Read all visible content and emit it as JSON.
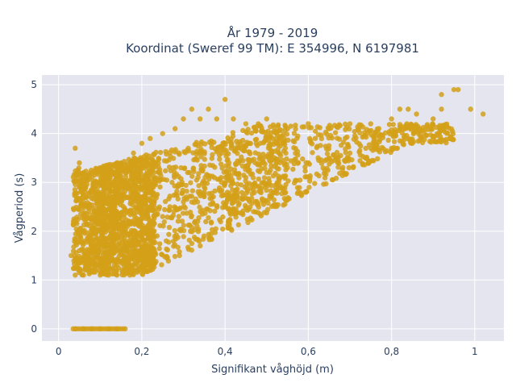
{
  "chart_data": {
    "type": "scatter",
    "title_line1": "År 1979 - 2019",
    "title_line2": "Koordinat (Sweref 99 TM): E 354996, N 6197981",
    "xlabel": "Signifikant våghöjd (m)",
    "ylabel": "Vågperiod (s)",
    "xlim": [
      -0.04,
      1.07
    ],
    "ylim": [
      -0.25,
      5.2
    ],
    "x_ticks": [
      0,
      0.2,
      0.4,
      0.6,
      0.8,
      1
    ],
    "x_tick_labels": [
      "0",
      "0,2",
      "0,4",
      "0,6",
      "0,8",
      "1"
    ],
    "y_ticks": [
      0,
      1,
      2,
      3,
      4,
      5
    ],
    "y_tick_labels": [
      "0",
      "1",
      "2",
      "3",
      "4",
      "5"
    ],
    "grid": true,
    "background_color": "#e5e5ef",
    "marker_color": "#d4a017",
    "series": [
      {
        "points": [
          [
            0.04,
            0.0
          ],
          [
            0.06,
            0.0
          ],
          [
            0.08,
            0.0
          ],
          [
            0.1,
            0.0
          ],
          [
            0.12,
            0.0
          ],
          [
            0.14,
            0.0
          ],
          [
            0.16,
            0.0
          ],
          [
            0.03,
            1.5
          ],
          [
            0.04,
            1.1
          ],
          [
            0.05,
            1.6
          ],
          [
            0.05,
            2.9
          ],
          [
            0.05,
            3.4
          ],
          [
            0.04,
            3.7
          ],
          [
            0.06,
            1.1
          ],
          [
            0.06,
            3.2
          ],
          [
            0.07,
            1.2
          ],
          [
            0.08,
            3.2
          ],
          [
            0.1,
            1.1
          ],
          [
            0.12,
            1.1
          ],
          [
            0.14,
            1.1
          ],
          [
            0.16,
            1.2
          ],
          [
            0.18,
            1.2
          ],
          [
            0.2,
            1.3
          ],
          [
            0.22,
            1.3
          ],
          [
            0.18,
            1.5
          ],
          [
            0.2,
            1.5
          ],
          [
            0.12,
            3.3
          ],
          [
            0.15,
            3.4
          ],
          [
            0.18,
            3.6
          ],
          [
            0.2,
            3.8
          ],
          [
            0.22,
            3.9
          ],
          [
            0.25,
            4.0
          ],
          [
            0.28,
            4.1
          ],
          [
            0.3,
            4.3
          ],
          [
            0.32,
            4.5
          ],
          [
            0.34,
            4.3
          ],
          [
            0.36,
            4.5
          ],
          [
            0.38,
            4.3
          ],
          [
            0.4,
            4.7
          ],
          [
            0.42,
            4.3
          ],
          [
            0.45,
            4.2
          ],
          [
            0.48,
            4.2
          ],
          [
            0.5,
            4.3
          ],
          [
            0.55,
            4.1
          ],
          [
            0.6,
            4.2
          ],
          [
            0.65,
            4.1
          ],
          [
            0.7,
            4.2
          ],
          [
            0.75,
            4.2
          ],
          [
            0.8,
            4.3
          ],
          [
            0.82,
            4.5
          ],
          [
            0.84,
            4.5
          ],
          [
            0.86,
            4.4
          ],
          [
            0.9,
            4.3
          ],
          [
            0.92,
            4.5
          ],
          [
            0.95,
            4.9
          ],
          [
            0.96,
            4.9
          ],
          [
            0.99,
            4.5
          ],
          [
            1.02,
            4.4
          ],
          [
            0.92,
            4.8
          ],
          [
            0.2,
            2.0
          ],
          [
            0.25,
            2.3
          ],
          [
            0.3,
            2.6
          ],
          [
            0.35,
            2.8
          ],
          [
            0.4,
            3.0
          ],
          [
            0.45,
            3.1
          ],
          [
            0.5,
            3.2
          ],
          [
            0.55,
            3.3
          ],
          [
            0.6,
            3.4
          ],
          [
            0.65,
            3.5
          ],
          [
            0.7,
            3.6
          ],
          [
            0.75,
            3.7
          ],
          [
            0.8,
            3.7
          ],
          [
            0.85,
            3.8
          ],
          [
            0.9,
            3.9
          ],
          [
            0.94,
            3.9
          ]
        ]
      }
    ]
  }
}
